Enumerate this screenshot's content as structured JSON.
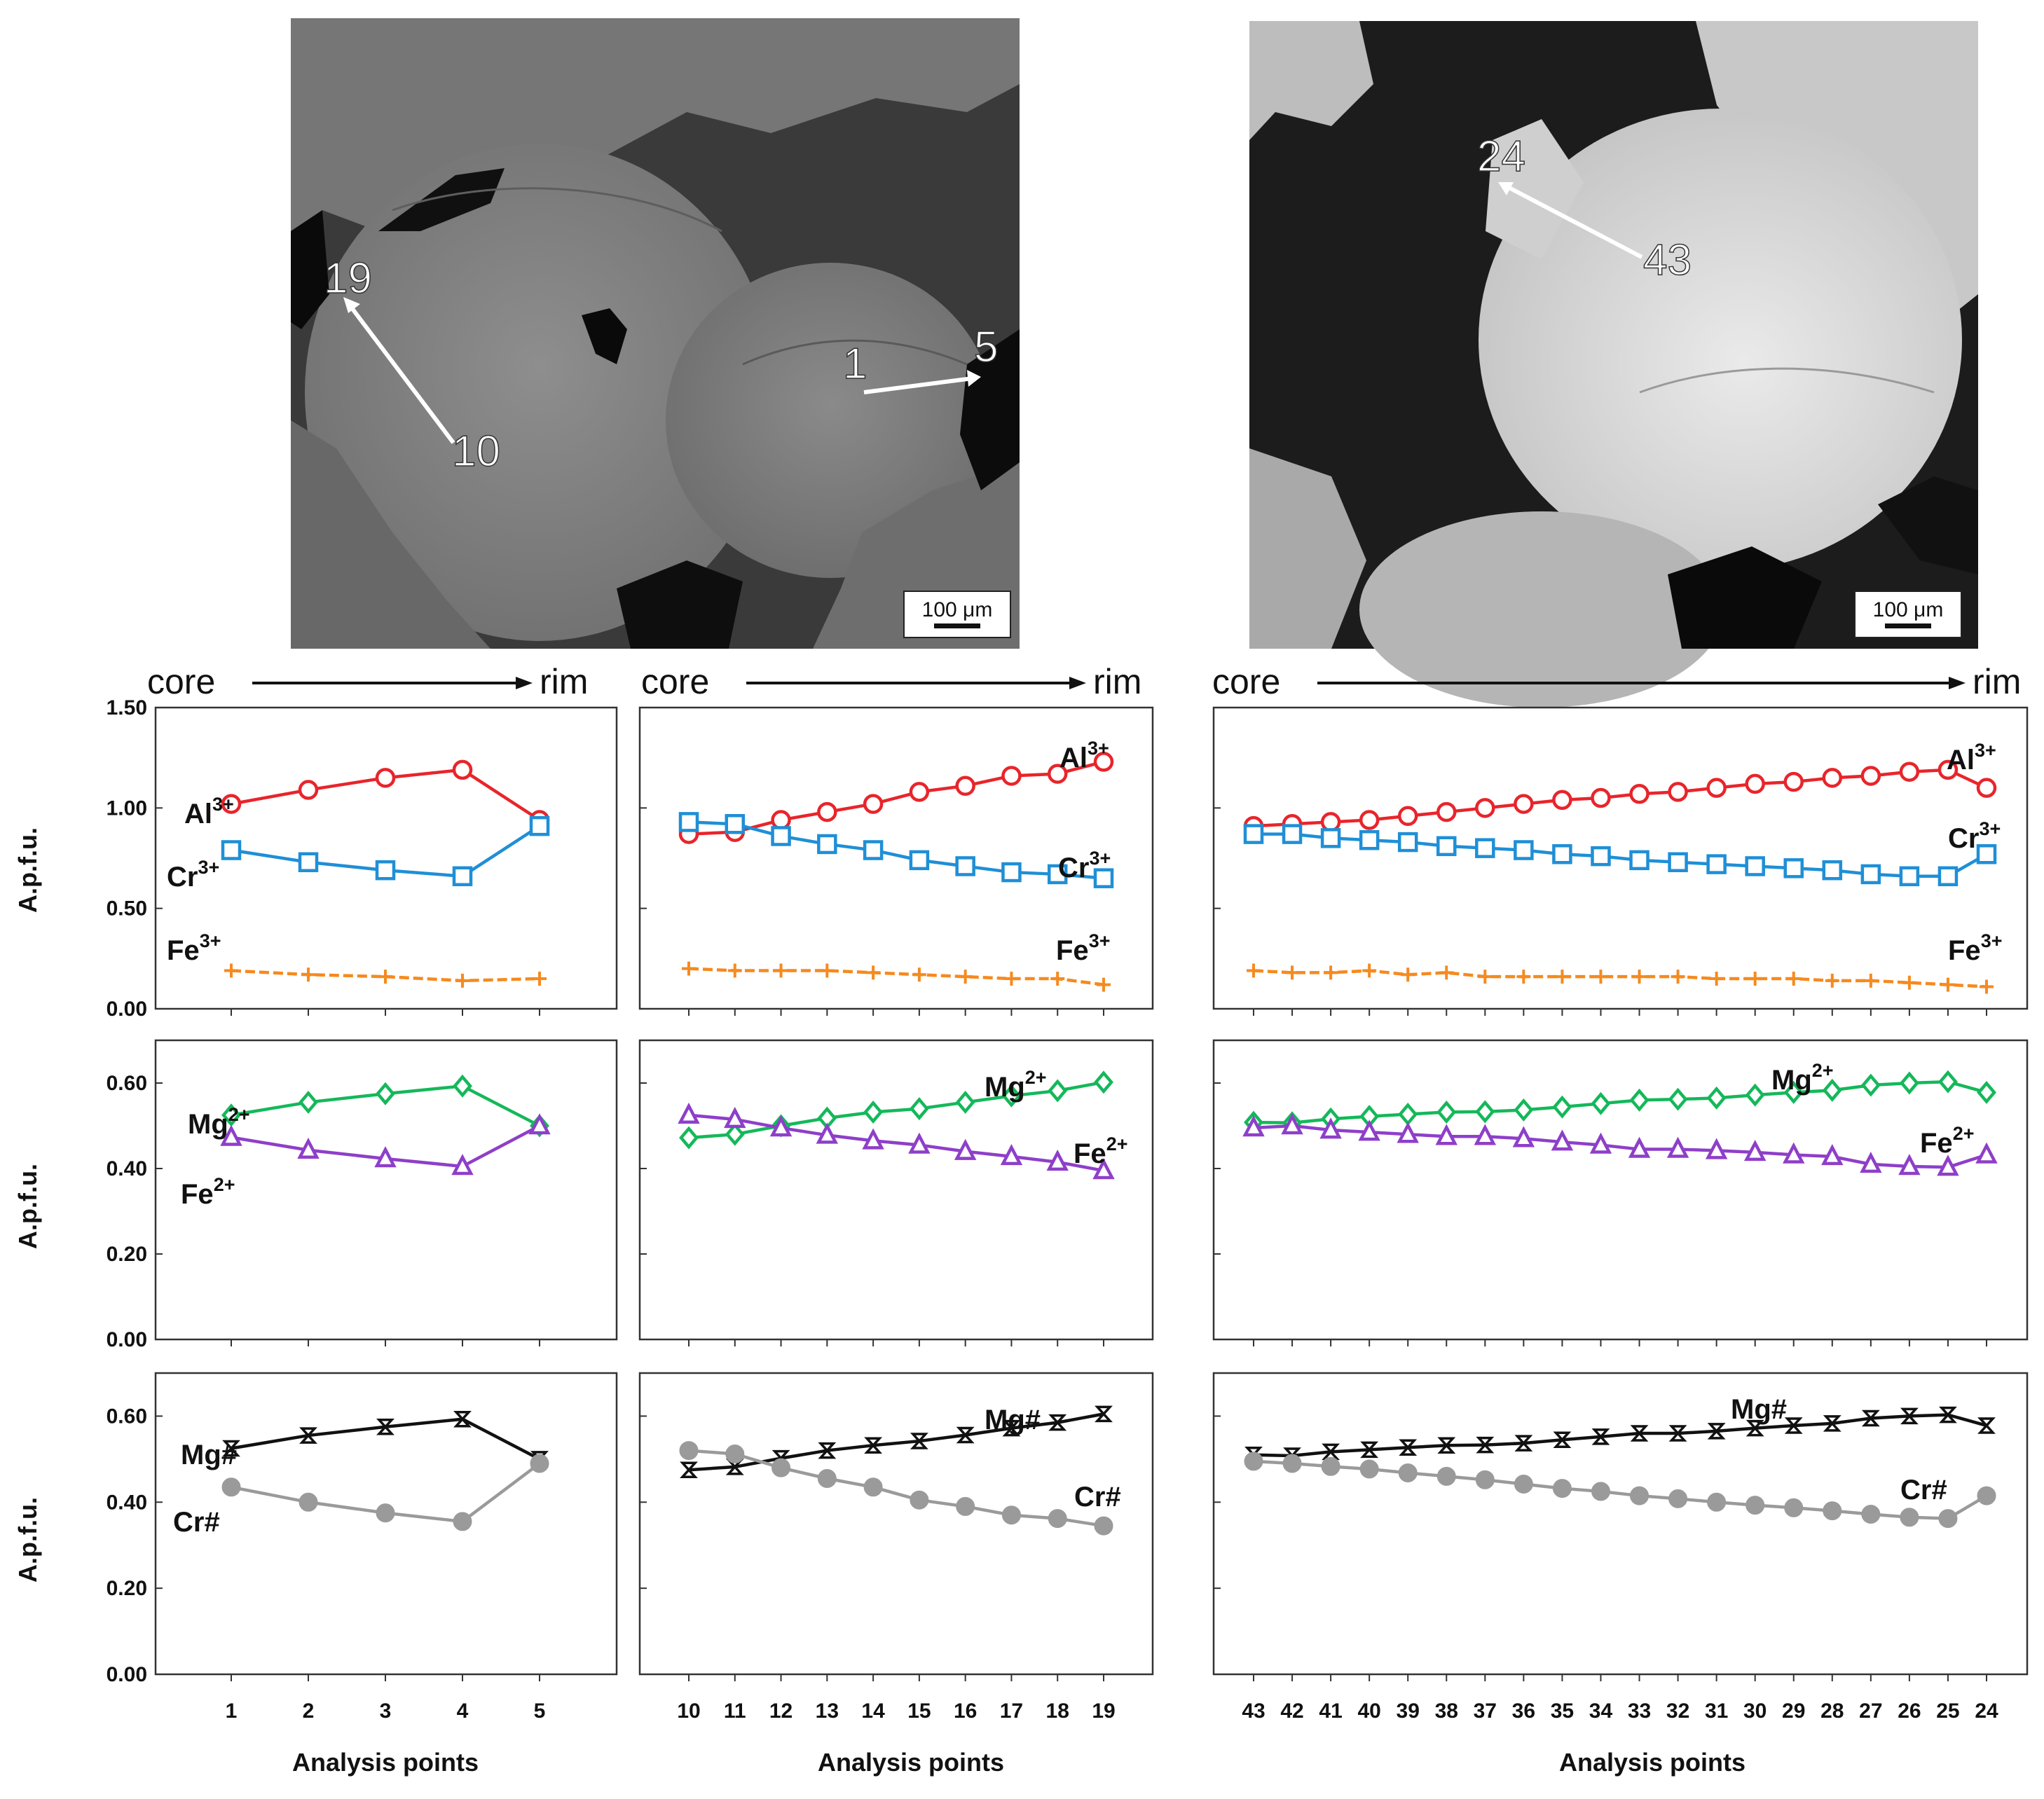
{
  "colors": {
    "al": "#e8252b",
    "cr": "#1f8fd6",
    "fe3": "#f58a1f",
    "mg": "#14b85a",
    "fe2": "#8e3fc9",
    "mgnum": "#111111",
    "crnum": "#9a9a9a"
  },
  "images": [
    {
      "name": "bse-left",
      "scale_label": "100 μm",
      "markers": [
        "19",
        "10",
        "1",
        "5"
      ]
    },
    {
      "name": "bse-right",
      "scale_label": "100 μm",
      "markers": [
        "24",
        "43"
      ]
    }
  ],
  "headers": {
    "core": "core",
    "rim": "rim"
  },
  "y_axis_label": "A.p.f.u.",
  "x_axis_label": "Analysis points",
  "chart_data": [
    {
      "type": "line",
      "group": "grain-1",
      "categories": [
        "1",
        "2",
        "3",
        "4",
        "5"
      ],
      "rows": [
        {
          "ylim": [
            0,
            1.5
          ],
          "yticks": [
            "0.00",
            "0.50",
            "1.00",
            "1.50"
          ],
          "series": [
            {
              "key": "al",
              "name": "Al3+",
              "base": "Al",
              "sup": "3+",
              "marker": "circle",
              "values": [
                1.02,
                1.09,
                1.15,
                1.19,
                0.94
              ]
            },
            {
              "key": "cr",
              "name": "Cr3+",
              "base": "Cr",
              "sup": "3+",
              "marker": "square",
              "values": [
                0.79,
                0.73,
                0.69,
                0.66,
                0.91
              ]
            },
            {
              "key": "fe3",
              "name": "Fe3+",
              "base": "Fe",
              "sup": "3+",
              "marker": "plus",
              "values": [
                0.19,
                0.17,
                0.16,
                0.14,
                0.15
              ]
            }
          ]
        },
        {
          "ylim": [
            0,
            0.7
          ],
          "yticks": [
            "0.00",
            "0.20",
            "0.40",
            "0.60"
          ],
          "series": [
            {
              "key": "mg",
              "name": "Mg2+",
              "base": "Mg",
              "sup": "2+",
              "marker": "diamond",
              "values": [
                0.525,
                0.555,
                0.575,
                0.593,
                0.5
              ]
            },
            {
              "key": "fe2",
              "name": "Fe2+",
              "base": "Fe",
              "sup": "2+",
              "marker": "triangle",
              "values": [
                0.473,
                0.443,
                0.423,
                0.405,
                0.5
              ]
            }
          ]
        },
        {
          "ylim": [
            0,
            0.7
          ],
          "yticks": [
            "0.00",
            "0.20",
            "0.40",
            "0.60"
          ],
          "series": [
            {
              "key": "mgnum",
              "name": "Mg#",
              "base": "Mg#",
              "sup": "",
              "marker": "bowtie",
              "values": [
                0.525,
                0.555,
                0.575,
                0.593,
                0.5
              ]
            },
            {
              "key": "crnum",
              "name": "Cr#",
              "base": "Cr#",
              "sup": "",
              "marker": "dot",
              "values": [
                0.435,
                0.4,
                0.375,
                0.355,
                0.49
              ]
            }
          ]
        }
      ]
    },
    {
      "type": "line",
      "group": "grain-2",
      "categories": [
        "10",
        "11",
        "12",
        "13",
        "14",
        "15",
        "16",
        "17",
        "18",
        "19"
      ],
      "rows": [
        {
          "ylim": [
            0,
            1.5
          ],
          "yticks": [
            "0.00",
            "0.50",
            "1.00",
            "1.50"
          ],
          "series": [
            {
              "key": "al",
              "name": "Al3+",
              "base": "Al",
              "sup": "3+",
              "marker": "circle",
              "values": [
                0.87,
                0.88,
                0.94,
                0.98,
                1.02,
                1.08,
                1.11,
                1.16,
                1.17,
                1.23
              ]
            },
            {
              "key": "cr",
              "name": "Cr3+",
              "base": "Cr",
              "sup": "3+",
              "marker": "square",
              "values": [
                0.93,
                0.92,
                0.86,
                0.82,
                0.79,
                0.74,
                0.71,
                0.68,
                0.67,
                0.65
              ]
            },
            {
              "key": "fe3",
              "name": "Fe3+",
              "base": "Fe",
              "sup": "3+",
              "marker": "plus",
              "values": [
                0.2,
                0.19,
                0.19,
                0.19,
                0.18,
                0.17,
                0.16,
                0.15,
                0.15,
                0.12
              ]
            }
          ]
        },
        {
          "ylim": [
            0,
            0.7
          ],
          "yticks": [
            "0.00",
            "0.20",
            "0.40",
            "0.60"
          ],
          "series": [
            {
              "key": "mg",
              "name": "Mg2+",
              "base": "Mg",
              "sup": "2+",
              "marker": "diamond",
              "values": [
                0.472,
                0.48,
                0.5,
                0.518,
                0.532,
                0.54,
                0.555,
                0.57,
                0.582,
                0.602
              ]
            },
            {
              "key": "fe2",
              "name": "Fe2+",
              "base": "Fe",
              "sup": "2+",
              "marker": "triangle",
              "values": [
                0.525,
                0.515,
                0.495,
                0.478,
                0.465,
                0.455,
                0.44,
                0.428,
                0.415,
                0.395
              ]
            }
          ]
        },
        {
          "ylim": [
            0,
            0.7
          ],
          "yticks": [
            "0.00",
            "0.20",
            "0.40",
            "0.60"
          ],
          "series": [
            {
              "key": "mgnum",
              "name": "Mg#",
              "base": "Mg#",
              "sup": "",
              "marker": "bowtie",
              "values": [
                0.475,
                0.482,
                0.502,
                0.52,
                0.532,
                0.542,
                0.556,
                0.572,
                0.585,
                0.605
              ]
            },
            {
              "key": "crnum",
              "name": "Cr#",
              "base": "Cr#",
              "sup": "",
              "marker": "dot",
              "values": [
                0.52,
                0.512,
                0.48,
                0.455,
                0.435,
                0.405,
                0.39,
                0.37,
                0.362,
                0.345
              ]
            }
          ]
        }
      ]
    },
    {
      "type": "line",
      "group": "grain-3",
      "categories": [
        "43",
        "42",
        "41",
        "40",
        "39",
        "38",
        "37",
        "36",
        "35",
        "34",
        "33",
        "32",
        "31",
        "30",
        "29",
        "28",
        "27",
        "26",
        "25",
        "24"
      ],
      "rows": [
        {
          "ylim": [
            0,
            1.5
          ],
          "yticks": [
            "0.00",
            "0.50",
            "1.00",
            "1.50"
          ],
          "series": [
            {
              "key": "al",
              "name": "Al3+",
              "base": "Al",
              "sup": "3+",
              "marker": "circle",
              "values": [
                0.91,
                0.92,
                0.93,
                0.94,
                0.96,
                0.98,
                1.0,
                1.02,
                1.04,
                1.05,
                1.07,
                1.08,
                1.1,
                1.12,
                1.13,
                1.15,
                1.16,
                1.18,
                1.19,
                1.1
              ]
            },
            {
              "key": "cr",
              "name": "Cr3+",
              "base": "Cr",
              "sup": "3+",
              "marker": "square",
              "values": [
                0.87,
                0.87,
                0.85,
                0.84,
                0.83,
                0.81,
                0.8,
                0.79,
                0.77,
                0.76,
                0.74,
                0.73,
                0.72,
                0.71,
                0.7,
                0.69,
                0.67,
                0.66,
                0.66,
                0.77
              ]
            },
            {
              "key": "fe3",
              "name": "Fe3+",
              "base": "Fe",
              "sup": "3+",
              "marker": "plus",
              "values": [
                0.19,
                0.18,
                0.18,
                0.19,
                0.17,
                0.18,
                0.16,
                0.16,
                0.16,
                0.16,
                0.16,
                0.16,
                0.15,
                0.15,
                0.15,
                0.14,
                0.14,
                0.13,
                0.12,
                0.11
              ]
            }
          ]
        },
        {
          "ylim": [
            0,
            0.7
          ],
          "yticks": [
            "0.00",
            "0.20",
            "0.40",
            "0.60"
          ],
          "series": [
            {
              "key": "mg",
              "name": "Mg2+",
              "base": "Mg",
              "sup": "2+",
              "marker": "diamond",
              "values": [
                0.508,
                0.507,
                0.516,
                0.522,
                0.527,
                0.532,
                0.533,
                0.537,
                0.544,
                0.552,
                0.56,
                0.562,
                0.565,
                0.572,
                0.578,
                0.583,
                0.595,
                0.6,
                0.603,
                0.578
              ]
            },
            {
              "key": "fe2",
              "name": "Fe2+",
              "base": "Fe",
              "sup": "2+",
              "marker": "triangle",
              "values": [
                0.495,
                0.5,
                0.49,
                0.485,
                0.48,
                0.475,
                0.475,
                0.47,
                0.462,
                0.455,
                0.445,
                0.445,
                0.442,
                0.438,
                0.432,
                0.428,
                0.41,
                0.405,
                0.403,
                0.432
              ]
            }
          ]
        },
        {
          "ylim": [
            0,
            0.7
          ],
          "yticks": [
            "0.00",
            "0.20",
            "0.40",
            "0.60"
          ],
          "series": [
            {
              "key": "mgnum",
              "name": "Mg#",
              "base": "Mg#",
              "sup": "",
              "marker": "bowtie",
              "values": [
                0.51,
                0.508,
                0.517,
                0.522,
                0.527,
                0.532,
                0.533,
                0.537,
                0.545,
                0.552,
                0.56,
                0.56,
                0.565,
                0.572,
                0.578,
                0.583,
                0.595,
                0.6,
                0.603,
                0.578
              ]
            },
            {
              "key": "crnum",
              "name": "Cr#",
              "base": "Cr#",
              "sup": "",
              "marker": "dot",
              "values": [
                0.495,
                0.49,
                0.483,
                0.477,
                0.468,
                0.46,
                0.452,
                0.442,
                0.432,
                0.425,
                0.415,
                0.408,
                0.4,
                0.393,
                0.387,
                0.38,
                0.372,
                0.365,
                0.362,
                0.415
              ]
            }
          ]
        }
      ]
    }
  ]
}
